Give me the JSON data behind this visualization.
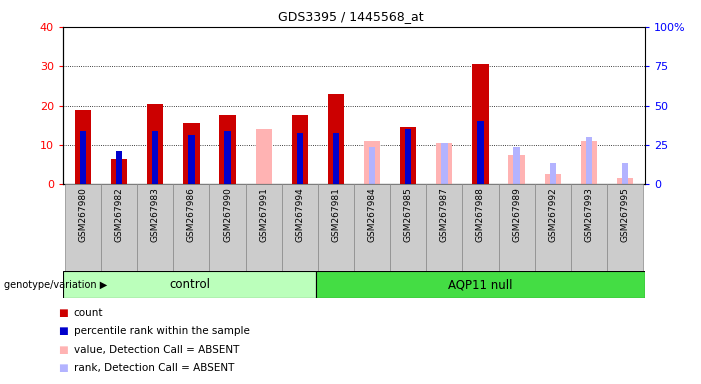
{
  "title": "GDS3395 / 1445568_at",
  "samples": [
    "GSM267980",
    "GSM267982",
    "GSM267983",
    "GSM267986",
    "GSM267990",
    "GSM267991",
    "GSM267994",
    "GSM267981",
    "GSM267984",
    "GSM267985",
    "GSM267987",
    "GSM267988",
    "GSM267989",
    "GSM267992",
    "GSM267993",
    "GSM267995"
  ],
  "groups": [
    "control",
    "control",
    "control",
    "control",
    "control",
    "control",
    "control",
    "AQP11 null",
    "AQP11 null",
    "AQP11 null",
    "AQP11 null",
    "AQP11 null",
    "AQP11 null",
    "AQP11 null",
    "AQP11 null",
    "AQP11 null"
  ],
  "count": [
    19,
    6.5,
    20.5,
    15.5,
    17.5,
    0,
    17.5,
    23,
    0,
    14.5,
    0,
    30.5,
    0,
    0,
    0,
    0
  ],
  "percentile": [
    13.5,
    8.5,
    13.5,
    12.5,
    13.5,
    0,
    13,
    13,
    0,
    14,
    0,
    16,
    0,
    0,
    0,
    0
  ],
  "value_absent": [
    0,
    0,
    0,
    0,
    0,
    14,
    0,
    0,
    11,
    0,
    10.5,
    0,
    7.5,
    2.5,
    11,
    1.5
  ],
  "rank_absent": [
    0,
    0,
    0,
    0,
    0,
    0,
    0,
    0,
    9.5,
    0,
    10.5,
    0,
    9.5,
    5.5,
    12,
    5.5
  ],
  "count_color": "#cc0000",
  "percentile_color": "#0000cc",
  "value_absent_color": "#ffb3b3",
  "rank_absent_color": "#b3b3ff",
  "control_color": "#bbffbb",
  "aqp11_color": "#44dd44",
  "ylim_left": [
    0,
    40
  ],
  "ylim_right": [
    0,
    100
  ],
  "yticks_left": [
    0,
    10,
    20,
    30,
    40
  ],
  "yticks_right": [
    0,
    25,
    50,
    75,
    100
  ],
  "control_count": 7,
  "legend_items": [
    {
      "label": "count",
      "color": "#cc0000"
    },
    {
      "label": "percentile rank within the sample",
      "color": "#0000cc"
    },
    {
      "label": "value, Detection Call = ABSENT",
      "color": "#ffb3b3"
    },
    {
      "label": "rank, Detection Call = ABSENT",
      "color": "#b3b3ff"
    }
  ],
  "xtick_bg_color": "#cccccc",
  "spine_color": "#000000"
}
